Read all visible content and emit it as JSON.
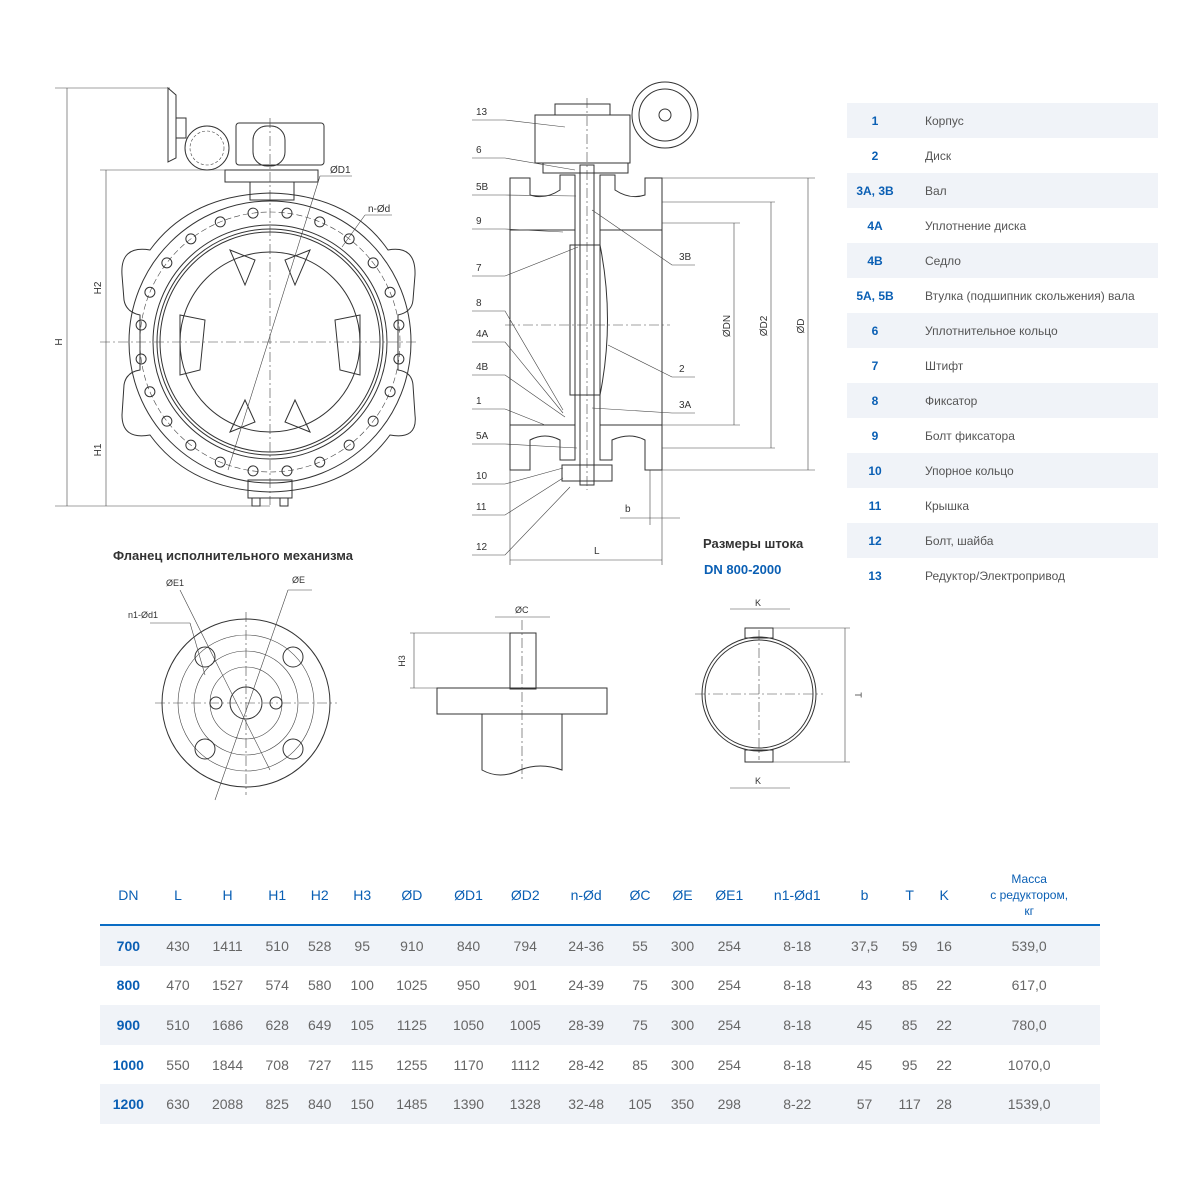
{
  "drawing": {
    "front_view": {
      "H": "H",
      "H2": "H2",
      "H1": "H1",
      "D1": "ØD1",
      "nd": "n-Ød"
    },
    "side_view": {
      "callouts_left": [
        "13",
        "6",
        "5B",
        "9",
        "7",
        "8",
        "4A",
        "4B",
        "1",
        "5A",
        "10",
        "11",
        "12"
      ],
      "callouts_right": [
        "3B",
        "2",
        "3A"
      ],
      "DN": "ØDN",
      "D2": "ØD2",
      "D": "ØD",
      "b": "b",
      "L": "L"
    },
    "flange": {
      "title": "Фланец исполнительного механизма",
      "E1": "ØE1",
      "E": "ØE",
      "n1d1": "n1-Ød1"
    },
    "stem": {
      "title": "Размеры штока",
      "subtitle": "DN 800-2000",
      "C": "ØC",
      "H3": "H3",
      "K_top": "K",
      "K_bottom": "K",
      "T": "T"
    }
  },
  "parts": [
    {
      "num": "1",
      "name": "Корпус"
    },
    {
      "num": "2",
      "name": "Диск"
    },
    {
      "num": "3A, 3B",
      "name": "Вал"
    },
    {
      "num": "4A",
      "name": "Уплотнение диска"
    },
    {
      "num": "4B",
      "name": "Седло"
    },
    {
      "num": "5A, 5B",
      "name": "Втулка (подшипник скольжения) вала"
    },
    {
      "num": "6",
      "name": "Уплотнительное кольцо"
    },
    {
      "num": "7",
      "name": "Штифт"
    },
    {
      "num": "8",
      "name": "Фиксатор"
    },
    {
      "num": "9",
      "name": "Болт фиксатора"
    },
    {
      "num": "10",
      "name": "Упорное кольцо"
    },
    {
      "num": "11",
      "name": "Крышка"
    },
    {
      "num": "12",
      "name": "Болт, шайба"
    },
    {
      "num": "13",
      "name": "Редуктор/Электропривод"
    }
  ],
  "table": {
    "headers": [
      "DN",
      "L",
      "H",
      "H1",
      "H2",
      "H3",
      "ØD",
      "ØD1",
      "ØD2",
      "n-Ød",
      "ØC",
      "ØE",
      "ØE1",
      "n1-Ød1",
      "b",
      "T",
      "K"
    ],
    "mass_header": [
      "Масса",
      "с редуктором,",
      "кг"
    ],
    "rows": [
      [
        "700",
        "430",
        "1411",
        "510",
        "528",
        "95",
        "910",
        "840",
        "794",
        "24-36",
        "55",
        "300",
        "254",
        "8-18",
        "37,5",
        "59",
        "16",
        "539,0"
      ],
      [
        "800",
        "470",
        "1527",
        "574",
        "580",
        "100",
        "1025",
        "950",
        "901",
        "24-39",
        "75",
        "300",
        "254",
        "8-18",
        "43",
        "85",
        "22",
        "617,0"
      ],
      [
        "900",
        "510",
        "1686",
        "628",
        "649",
        "105",
        "1125",
        "1050",
        "1005",
        "28-39",
        "75",
        "300",
        "254",
        "8-18",
        "45",
        "85",
        "22",
        "780,0"
      ],
      [
        "1000",
        "550",
        "1844",
        "708",
        "727",
        "115",
        "1255",
        "1170",
        "1112",
        "28-42",
        "85",
        "300",
        "254",
        "8-18",
        "45",
        "95",
        "22",
        "1070,0"
      ],
      [
        "1200",
        "630",
        "2088",
        "825",
        "840",
        "150",
        "1485",
        "1390",
        "1328",
        "32-48",
        "105",
        "350",
        "298",
        "8-22",
        "57",
        "117",
        "28",
        "1539,0"
      ]
    ]
  },
  "colors": {
    "accent": "#0a5fb4",
    "row_shade": "#f0f3f8",
    "line": "#333333"
  }
}
